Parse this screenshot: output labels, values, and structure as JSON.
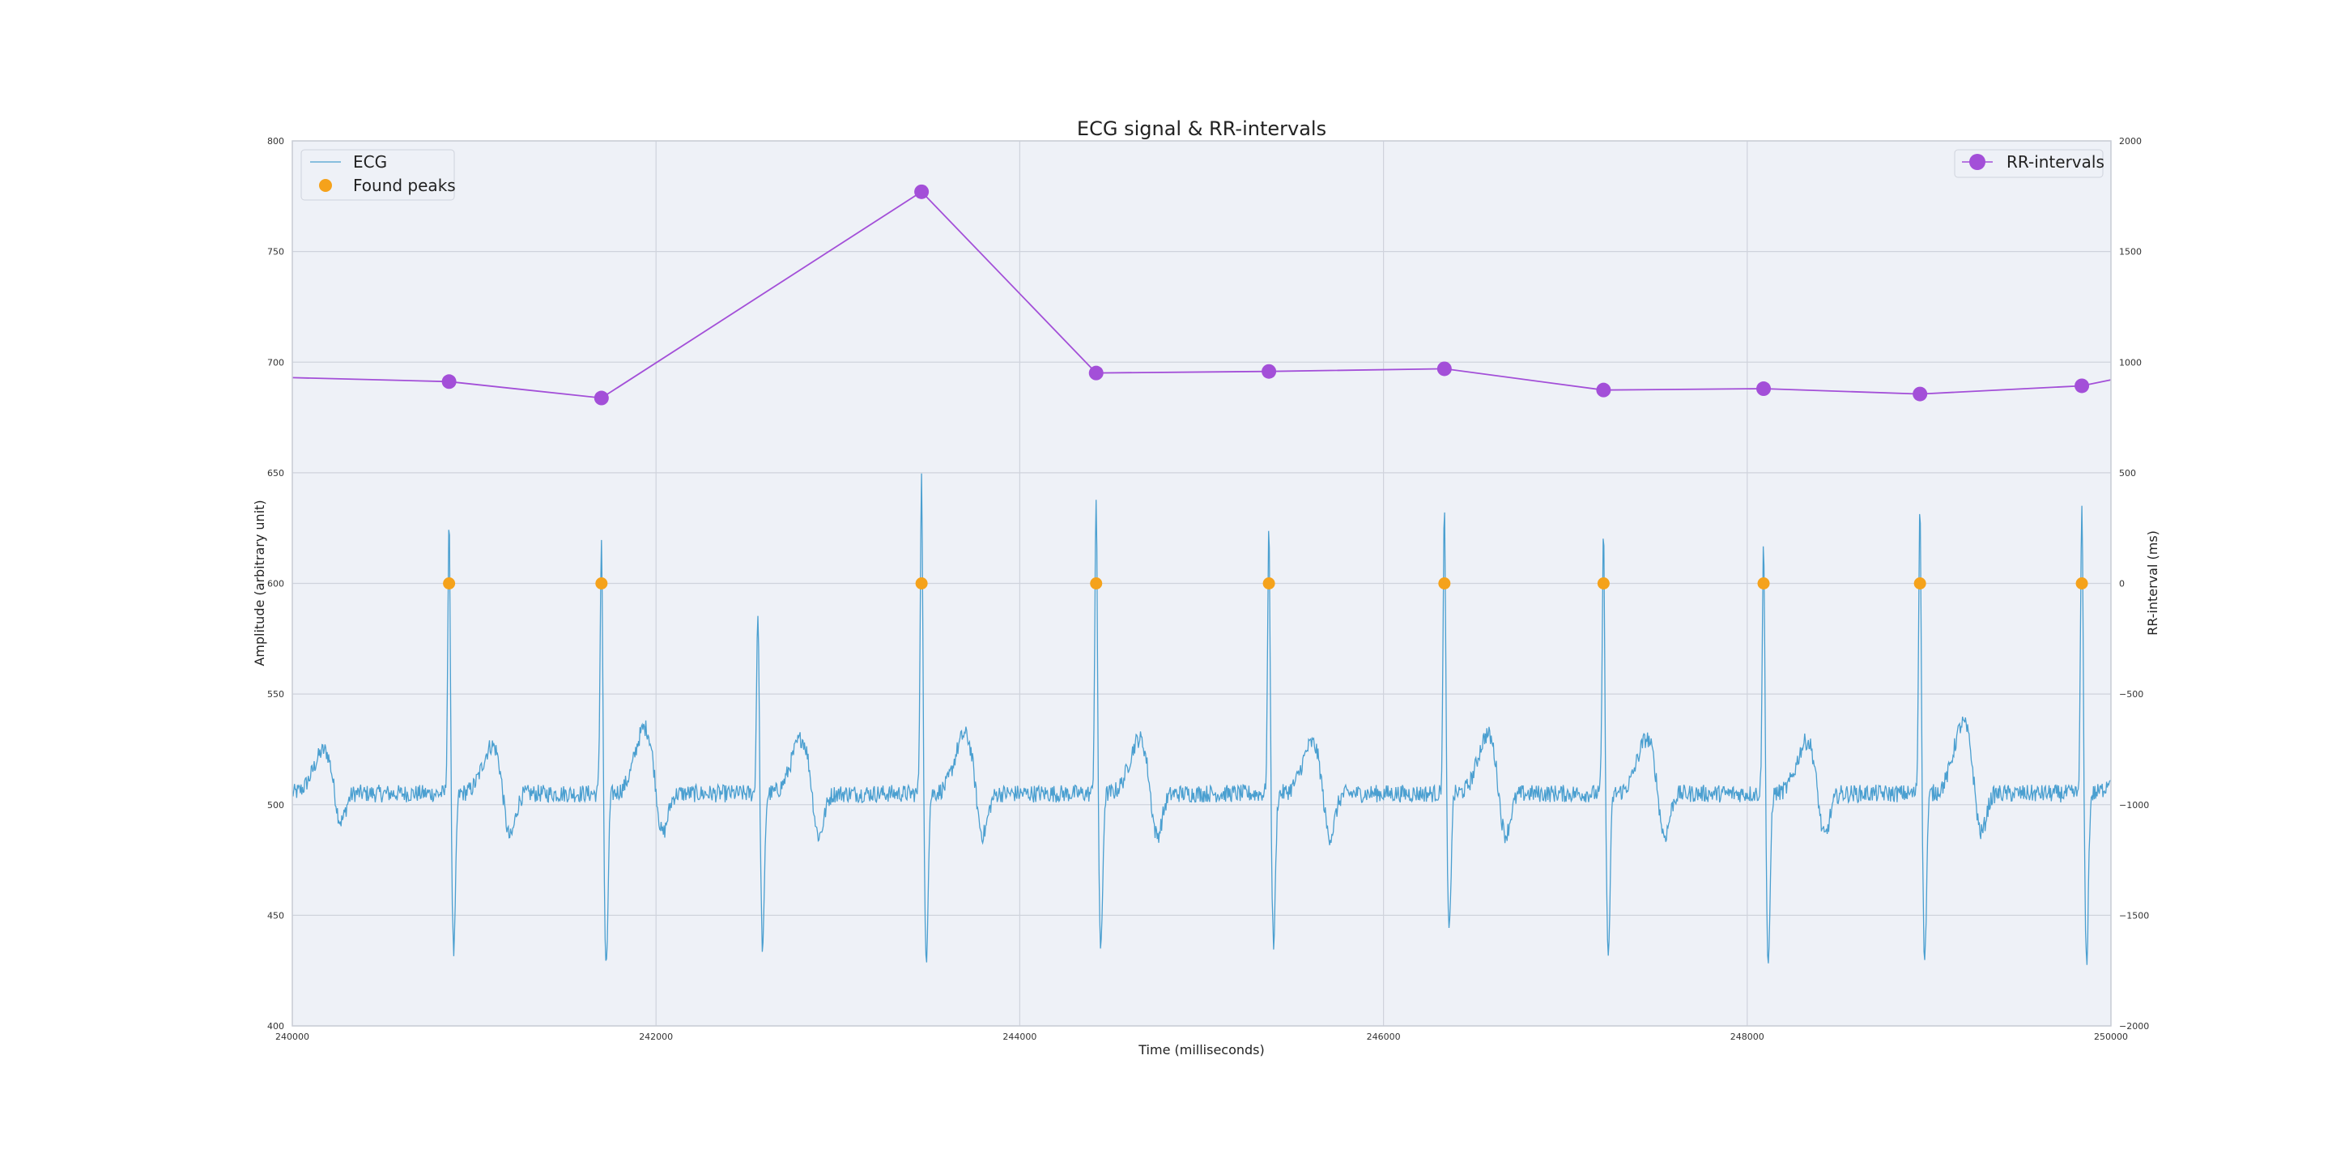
{
  "chart_data": {
    "type": "line",
    "title": "ECG signal & RR-intervals",
    "xlabel": "Time (milliseconds)",
    "ylabel_left": "Amplitude (arbitrary unit)",
    "ylabel_right": "RR-interval (ms)",
    "xlim": [
      240000,
      250000
    ],
    "ylim_left": [
      400,
      800
    ],
    "ylim_right": [
      -2000,
      2000
    ],
    "x_ticks": [
      240000,
      242000,
      244000,
      246000,
      248000,
      250000
    ],
    "y_ticks_left": [
      400,
      450,
      500,
      550,
      600,
      650,
      700,
      750,
      800
    ],
    "y_ticks_right": [
      -2000,
      -1500,
      -1000,
      -500,
      0,
      500,
      1000,
      1500,
      2000
    ],
    "y_tick_labels_right": [
      "−2000",
      "−1500",
      "−1000",
      "−500",
      "0",
      "500",
      "1000",
      "1500",
      "2000"
    ],
    "grid": true,
    "legend_left_placement": "top-left",
    "legend_right_placement": "top-right",
    "colors": {
      "ecg": "#4a9fd0",
      "peaks": "#f5a21b",
      "rr": "#a34fd8",
      "plot_bg": "#eef1f7",
      "grid": "#cfd3dc"
    },
    "series": [
      {
        "name": "ECG",
        "kind": "ecg-signal",
        "baseline": 505,
        "beats": [
          {
            "r_x": 240862,
            "r_peak": 627,
            "s_min": 433,
            "t_peak": 527
          },
          {
            "r_x": 241700,
            "r_peak": 622,
            "s_min": 425,
            "t_peak": 535
          },
          {
            "r_x": 242560,
            "r_peak": 590,
            "s_min": 435,
            "t_peak": 530
          },
          {
            "r_x": 243460,
            "r_peak": 650,
            "s_min": 431,
            "t_peak": 532
          },
          {
            "r_x": 244420,
            "r_peak": 639,
            "s_min": 434,
            "t_peak": 530
          },
          {
            "r_x": 245370,
            "r_peak": 626,
            "s_min": 437,
            "t_peak": 528
          },
          {
            "r_x": 246335,
            "r_peak": 634,
            "s_min": 442,
            "t_peak": 532
          },
          {
            "r_x": 247210,
            "r_peak": 623,
            "s_min": 432,
            "t_peak": 530
          },
          {
            "r_x": 248090,
            "r_peak": 621,
            "s_min": 426,
            "t_peak": 529
          },
          {
            "r_x": 248950,
            "r_peak": 638,
            "s_min": 430,
            "t_peak": 537
          },
          {
            "r_x": 249840,
            "r_peak": 637,
            "s_min": 429,
            "t_peak": 530
          }
        ]
      },
      {
        "name": "Found peaks",
        "axis": "left",
        "x": [
          240862,
          241700,
          243460,
          244420,
          245370,
          246335,
          247210,
          248090,
          248950,
          249840
        ],
        "y": [
          600,
          600,
          600,
          600,
          600,
          600,
          600,
          600,
          600,
          600
        ]
      },
      {
        "name": "RR-intervals",
        "axis": "right",
        "x": [
          240000,
          240862,
          241700,
          243460,
          244420,
          245370,
          246335,
          247210,
          248090,
          248950,
          249840,
          250000
        ],
        "y": [
          930,
          912,
          838,
          1770,
          951,
          958,
          970,
          874,
          880,
          856,
          893,
          920
        ]
      }
    ]
  }
}
